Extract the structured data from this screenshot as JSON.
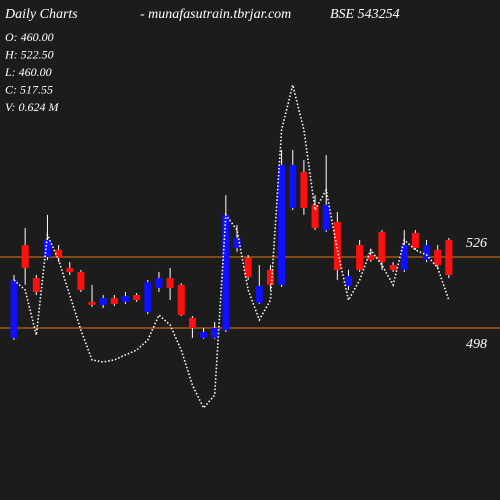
{
  "chart_data": {
    "type": "candlestick",
    "title": "Daily Charts",
    "subtitle": "-  munafasutrain.tbrjar.com",
    "symbol": "BSE 543254",
    "info": [
      "O: 460.00",
      "H: 522.50",
      "L: 460.00",
      "C: 517.55",
      "V: 0.624  M"
    ],
    "up_color": "#1010ff",
    "down_color": "#ff1010",
    "level_color": "#e07a10",
    "ylim": [
      430.2,
      627.3
    ],
    "levels": [
      526,
      498
    ],
    "open": [
      494.1,
      530.7,
      517.7,
      526.0,
      528.8,
      521.7,
      520.1,
      508.3,
      507.1,
      509.8,
      508.3,
      511.0,
      504.3,
      513.8,
      517.7,
      515.0,
      502.0,
      494.1,
      494.1,
      497.2,
      529.5,
      525.6,
      507.9,
      520.9,
      515.0,
      545.3,
      559.5,
      546.5,
      536.6,
      539.8,
      514.6,
      530.7,
      526.8,
      535.9,
      522.8,
      520.9,
      535.5,
      524.8,
      528.8,
      532.7
    ],
    "high": [
      518.9,
      537.4,
      518.9,
      542.6,
      530.7,
      524.0,
      520.9,
      515.0,
      511.0,
      511.0,
      512.2,
      511.8,
      516.9,
      520.1,
      521.7,
      515.7,
      502.7,
      498.0,
      500.4,
      550.4,
      538.6,
      526.8,
      522.8,
      522.8,
      568.2,
      568.2,
      564.2,
      550.4,
      566.2,
      543.7,
      520.9,
      532.7,
      528.8,
      536.6,
      524.0,
      536.6,
      536.6,
      532.7,
      530.7,
      533.5
    ],
    "low": [
      493.3,
      515.0,
      511.0,
      524.8,
      524.0,
      518.9,
      512.2,
      506.3,
      505.9,
      506.7,
      507.5,
      508.3,
      503.5,
      512.2,
      509.0,
      502.7,
      494.1,
      493.7,
      493.7,
      496.4,
      528.0,
      516.9,
      507.5,
      513.0,
      514.2,
      544.5,
      542.6,
      536.6,
      535.9,
      516.9,
      513.0,
      520.1,
      524.0,
      520.9,
      520.1,
      520.1,
      528.8,
      524.0,
      521.7,
      517.7
    ],
    "close": [
      516.9,
      521.7,
      512.2,
      532.7,
      525.6,
      520.1,
      513.0,
      507.1,
      509.8,
      507.5,
      510.6,
      509.0,
      516.1,
      517.7,
      513.8,
      503.1,
      498.0,
      496.4,
      498.0,
      542.6,
      533.5,
      518.1,
      514.6,
      515.0,
      562.3,
      562.3,
      545.3,
      537.4,
      546.5,
      520.9,
      518.5,
      520.9,
      524.8,
      524.0,
      520.9,
      530.7,
      529.5,
      530.7,
      522.8,
      518.9
    ],
    "series": [
      {
        "color": "#ffffff",
        "values": [
          516.9,
          513.0,
          495.2,
          534.7,
          524.8,
          511.0,
          497.2,
          485.4,
          484.6,
          485.4,
          487.4,
          489.3,
          493.3,
          503.1,
          499.2,
          489.3,
          475.5,
          466.5,
          471.6,
          542.6,
          536.6,
          513.0,
          501.2,
          509.0,
          576.1,
          593.8,
          576.1,
          544.5,
          552.4,
          528.8,
          509.0,
          516.9,
          528.8,
          522.8,
          515.0,
          532.7,
          528.8,
          526.8,
          521.7,
          509.0
        ]
      }
    ]
  }
}
